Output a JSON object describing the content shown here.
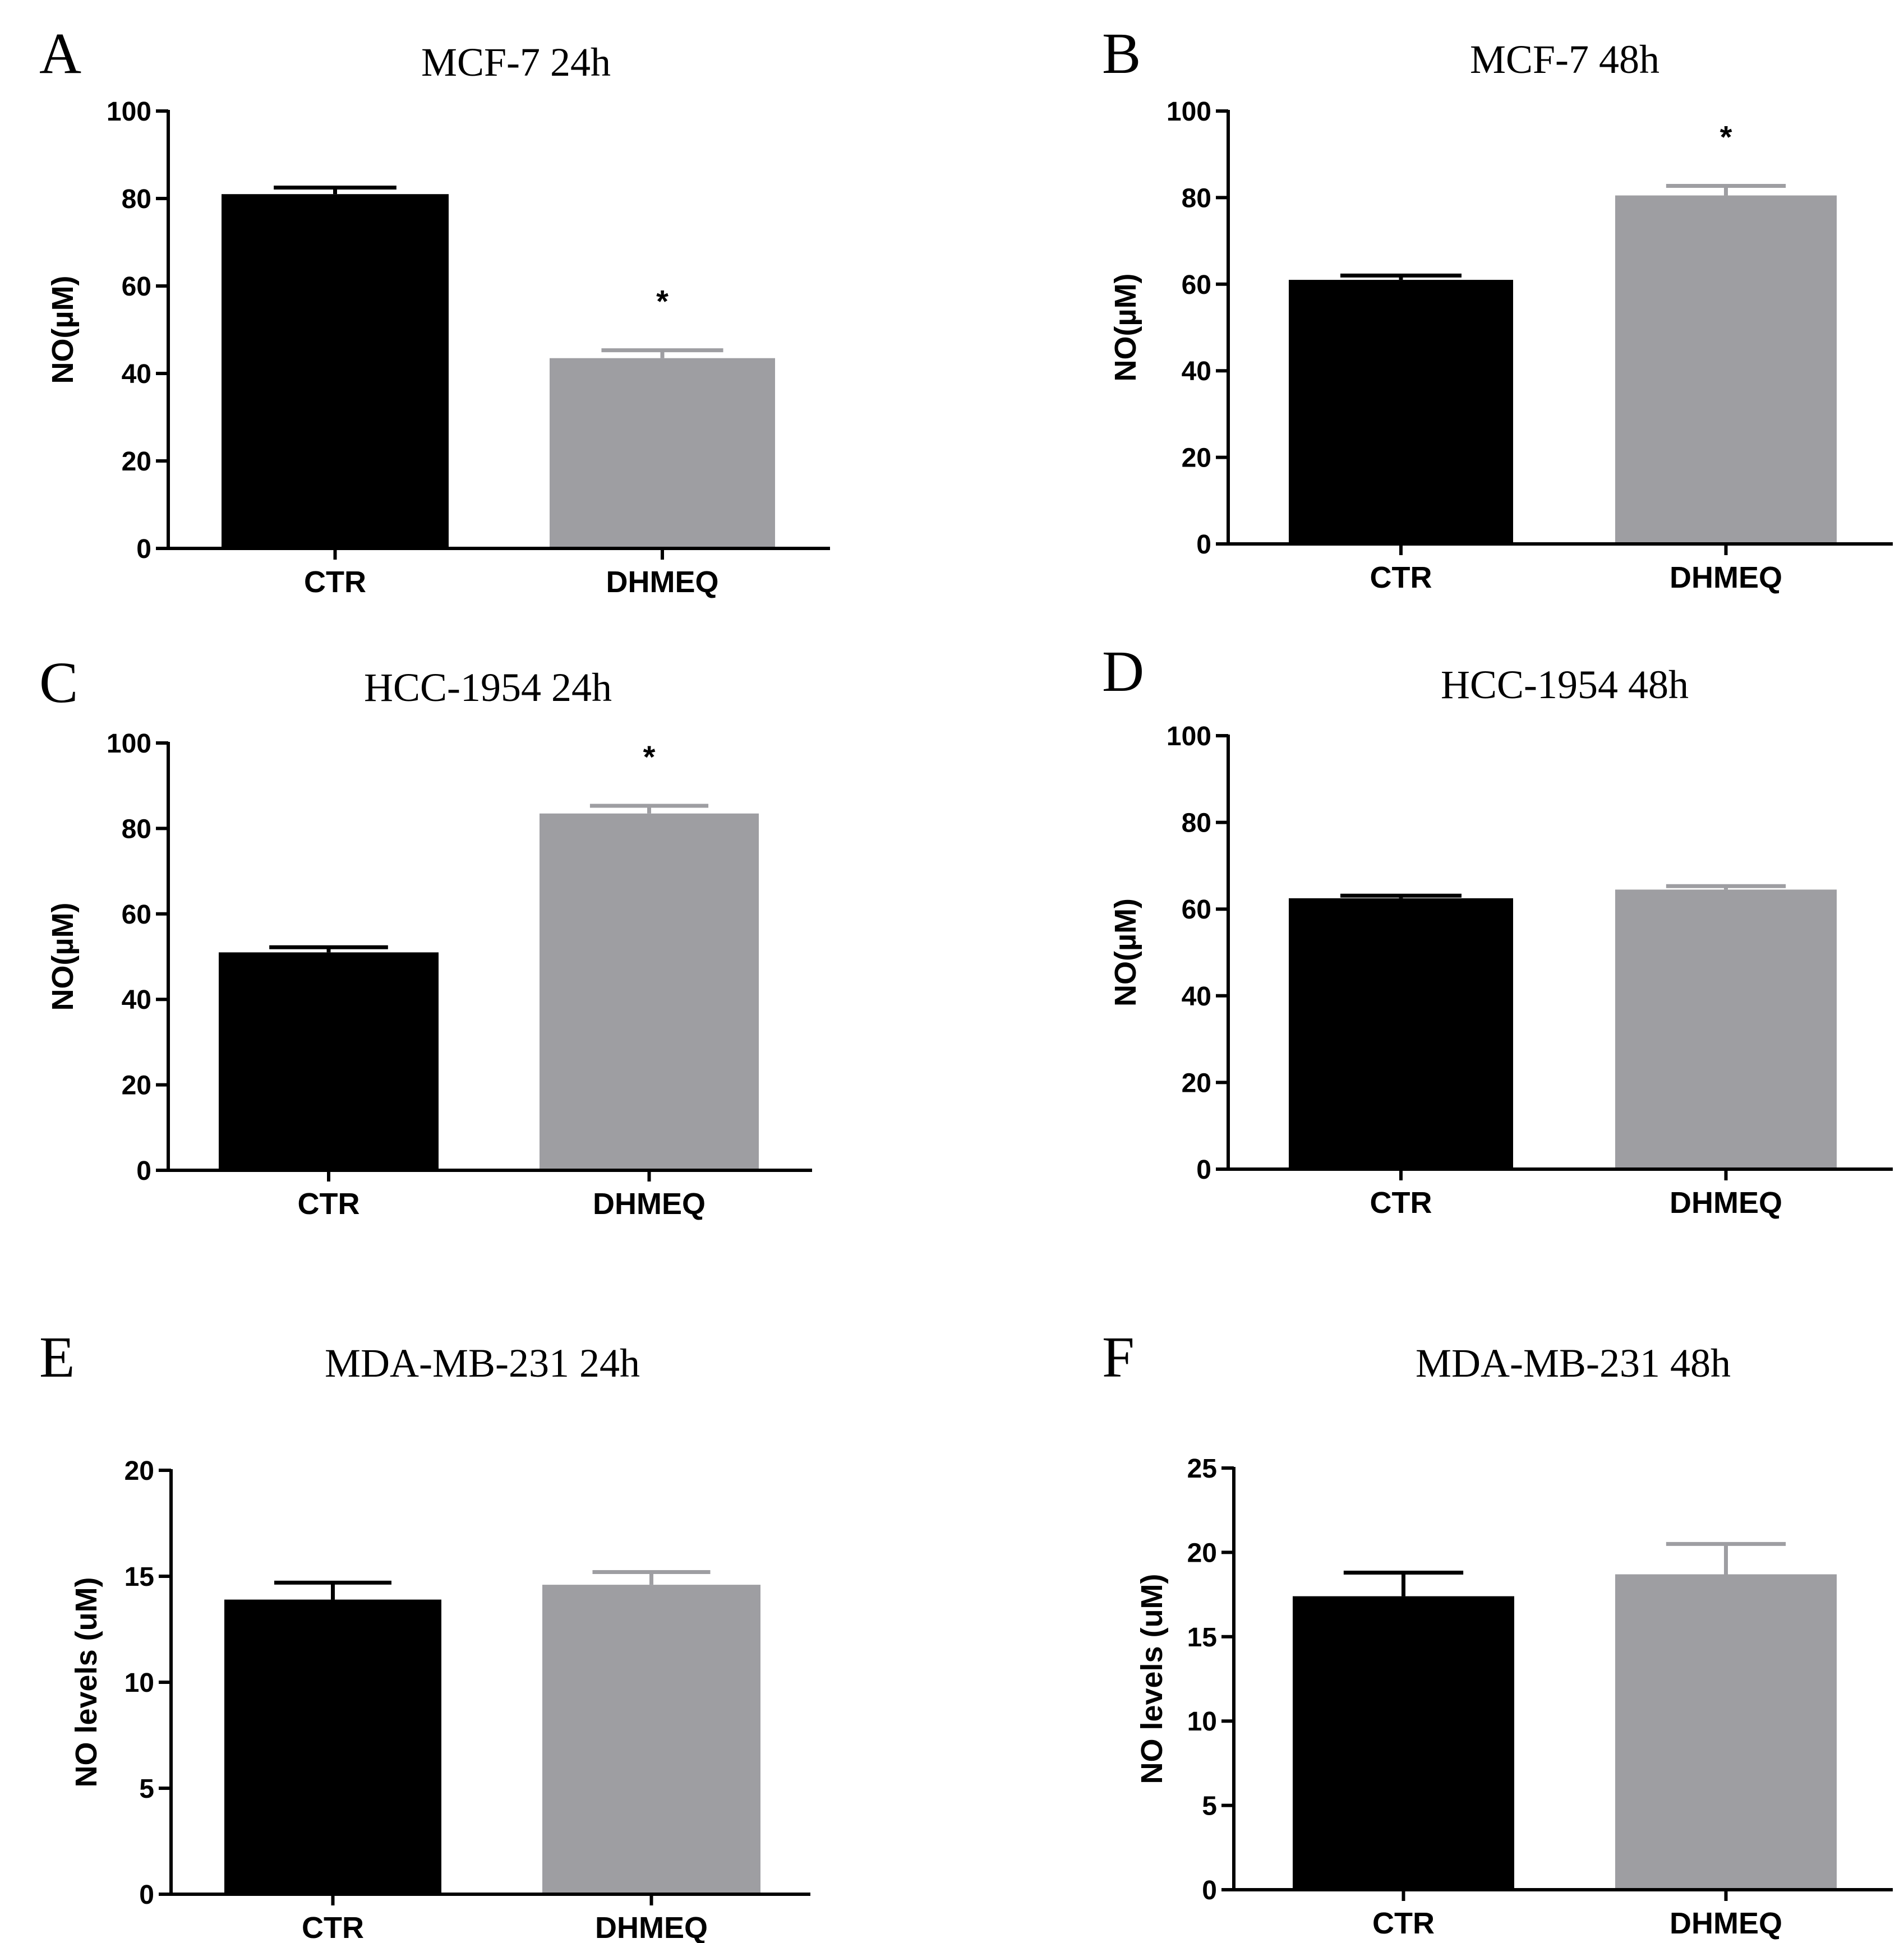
{
  "figure": {
    "background": "#ffffff",
    "ctr_color": "#000000",
    "dhmeq_color": "#9e9ea2"
  },
  "chart_data": [
    {
      "letter": "A",
      "title": "MCF-7 24h",
      "type": "bar",
      "ylabel": "NO(µM)",
      "xlabel": "",
      "ylim": [
        0,
        100
      ],
      "yticks": [
        0,
        20,
        40,
        60,
        80,
        100
      ],
      "categories": [
        "CTR",
        "DHMEQ"
      ],
      "values": [
        81,
        43.5
      ],
      "errors": [
        1.5,
        1.8
      ],
      "colors": [
        "#000000",
        "#9e9ea2"
      ],
      "significance": [
        "",
        "*"
      ]
    },
    {
      "letter": "B",
      "title": "MCF-7 48h",
      "type": "bar",
      "ylabel": "NO(µM)",
      "xlabel": "",
      "ylim": [
        0,
        100
      ],
      "yticks": [
        0,
        20,
        40,
        60,
        80,
        100
      ],
      "categories": [
        "CTR",
        "DHMEQ"
      ],
      "values": [
        61,
        80.5
      ],
      "errors": [
        1,
        2.2
      ],
      "colors": [
        "#000000",
        "#9e9ea2"
      ],
      "significance": [
        "",
        "*"
      ]
    },
    {
      "letter": "C",
      "title": "HCC-1954 24h",
      "type": "bar",
      "ylabel": "NO(µM)",
      "xlabel": "",
      "ylim": [
        0,
        100
      ],
      "yticks": [
        0,
        20,
        40,
        60,
        80,
        100
      ],
      "categories": [
        "CTR",
        "DHMEQ"
      ],
      "values": [
        51,
        83.5
      ],
      "errors": [
        1.2,
        1.8
      ],
      "colors": [
        "#000000",
        "#9e9ea2"
      ],
      "significance": [
        "",
        "*"
      ]
    },
    {
      "letter": "D",
      "title": "HCC-1954 48h",
      "type": "bar",
      "ylabel": "NO(µM)",
      "xlabel": "",
      "ylim": [
        0,
        100
      ],
      "yticks": [
        0,
        20,
        40,
        60,
        80,
        100
      ],
      "categories": [
        "CTR",
        "DHMEQ"
      ],
      "values": [
        62.5,
        64.5
      ],
      "errors": [
        0.6,
        0.8
      ],
      "colors": [
        "#000000",
        "#9e9ea2"
      ],
      "significance": [
        "",
        ""
      ]
    },
    {
      "letter": "E",
      "title": "MDA-MB-231 24h",
      "type": "bar",
      "ylabel": "NO levels (uM)",
      "xlabel": "",
      "ylim": [
        0,
        20
      ],
      "yticks": [
        0,
        5,
        10,
        15,
        20
      ],
      "categories": [
        "CTR",
        "DHMEQ"
      ],
      "values": [
        13.9,
        14.6
      ],
      "errors": [
        0.8,
        0.6
      ],
      "colors": [
        "#000000",
        "#9e9ea2"
      ],
      "significance": [
        "",
        ""
      ]
    },
    {
      "letter": "F",
      "title": "MDA-MB-231 48h",
      "type": "bar",
      "ylabel": "NO levels (uM)",
      "xlabel": "",
      "ylim": [
        0,
        25
      ],
      "yticks": [
        0,
        5,
        10,
        15,
        20,
        25
      ],
      "categories": [
        "CTR",
        "DHMEQ"
      ],
      "values": [
        17.4,
        18.7
      ],
      "errors": [
        1.4,
        1.8
      ],
      "colors": [
        "#000000",
        "#9e9ea2"
      ],
      "significance": [
        "",
        ""
      ]
    }
  ]
}
